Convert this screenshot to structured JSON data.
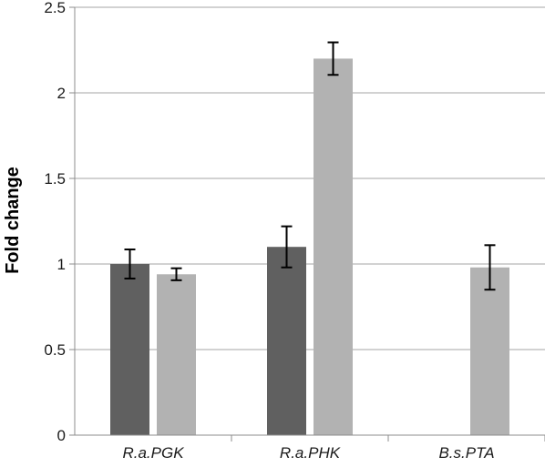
{
  "chart_data": {
    "type": "bar",
    "title": "",
    "xlabel": "",
    "ylabel": "Fold change",
    "ylim": [
      0,
      2.5
    ],
    "yticks": [
      "0",
      "0.5",
      "1",
      "1.5",
      "2",
      "2.5"
    ],
    "grid": true,
    "legend": "none",
    "categories": [
      "R.a.PGK",
      "R.a.PHK",
      "B.s.PTA"
    ],
    "series": [
      {
        "color": "#606060",
        "values": [
          1.0,
          1.1,
          null
        ],
        "errors": [
          0.085,
          0.12,
          null
        ]
      },
      {
        "color": "#b2b2b2",
        "values": [
          0.94,
          2.2,
          0.98
        ],
        "errors": [
          0.035,
          0.095,
          0.13
        ]
      }
    ]
  }
}
